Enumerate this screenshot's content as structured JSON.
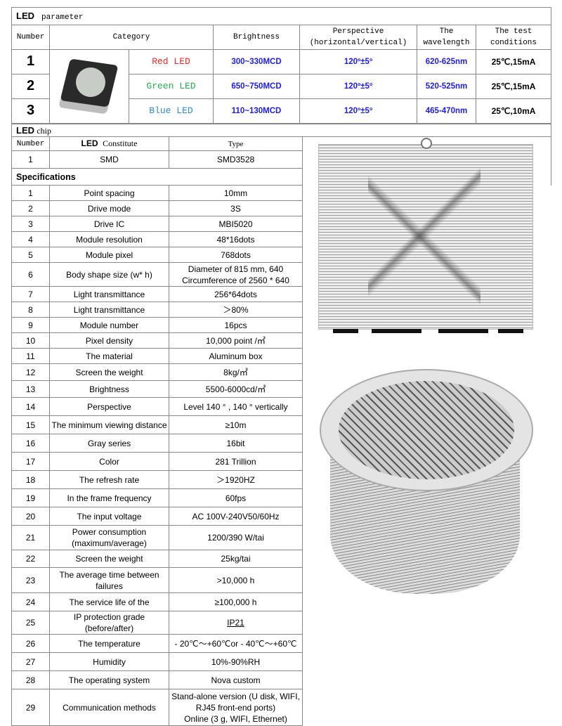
{
  "led_parameter": {
    "title_bold": "LED",
    "title": "parameter",
    "headers": [
      "Number",
      "Category",
      "Brightness",
      "Perspective\n(horizontal/vertical)",
      "The\nwavelength",
      "The test\nconditions"
    ],
    "rows": [
      {
        "number": "1",
        "category": "Red LED",
        "color": "#ff2020",
        "brightness": "300~330MCD",
        "perspective": "120º±5º",
        "wavelength": "620-625nm",
        "conditions": "25℃,15mA"
      },
      {
        "number": "2",
        "category": "Green LED",
        "color": "#20b050",
        "brightness": "650~750MCD",
        "perspective": "120º±5º",
        "wavelength": "520-525nm",
        "conditions": "25℃,15mA"
      },
      {
        "number": "3",
        "category": "Blue LED",
        "color": "#2a8ad8",
        "brightness": "110~130MCD",
        "perspective": "120º±5º",
        "wavelength": "465-470nm",
        "conditions": "25℃,10mA"
      }
    ]
  },
  "led_chip": {
    "title_bold": "LED",
    "title": "chip",
    "headers": [
      "Number",
      "LED",
      "Constitute",
      "Type"
    ],
    "row": [
      "1",
      "SMD",
      "SMD3528"
    ]
  },
  "specifications": {
    "title": "Specifications",
    "rows": [
      [
        "1",
        "Point spacing",
        "10mm"
      ],
      [
        "2",
        "Drive mode",
        "3S"
      ],
      [
        "3",
        "Drive IC",
        "MBI5020"
      ],
      [
        "4",
        "Module resolution",
        "48*16dots"
      ],
      [
        "5",
        "Module pixel",
        "768dots"
      ],
      [
        "6",
        "Body shape size (w* h)",
        "Diameter of 815 mm, 640\nCircumference of 2560 * 640"
      ],
      [
        "7",
        "Light transmittance",
        "256*64dots"
      ],
      [
        "8",
        "Light transmittance",
        "＞80%"
      ],
      [
        "9",
        "Module number",
        "16pcs"
      ],
      [
        "10",
        "Pixel density",
        "10,000 point /㎡"
      ],
      [
        "11",
        "The material",
        "Aluminum box"
      ],
      [
        "12",
        "Screen the weight",
        "8kg/㎡"
      ],
      [
        "13",
        "Brightness",
        "5500-6000cd/㎡"
      ],
      [
        "14",
        "Perspective",
        "Level 140 ° , 140 °   vertically"
      ],
      [
        "15",
        "The minimum viewing distance",
        "≥10m"
      ],
      [
        "16",
        "Gray series",
        "16bit"
      ],
      [
        "17",
        "Color",
        "281 Trillion"
      ],
      [
        "18",
        "The refresh rate",
        "＞1920HZ"
      ],
      [
        "19",
        "In the frame frequency",
        "60fps"
      ],
      [
        "20",
        "The input voltage",
        "AC 100V-240V50/60Hz"
      ],
      [
        "21",
        "Power consumption\n(maximum/average)",
        "1200/390 W/tai"
      ],
      [
        "22",
        "Screen the weight",
        "25kg/tai"
      ],
      [
        "23",
        "The average time between\nfailures",
        ">10,000 h"
      ],
      [
        "24",
        "The service life of the",
        "≥100,000 h"
      ],
      [
        "25",
        "IP protection grade (before/after)",
        "IP21"
      ],
      [
        "26",
        "The temperature",
        "- 20℃～+60℃or - 40℃～+60℃"
      ],
      [
        "27",
        "Humidity",
        "10%-90%RH"
      ],
      [
        "28",
        "The operating system",
        "Nova custom"
      ],
      [
        "29",
        "Communication methods",
        "Stand-alone version (U disk, WIFI,\nRJ45 front-end ports)\nOnline (3 g, WIFI, Ethernet)"
      ]
    ]
  }
}
